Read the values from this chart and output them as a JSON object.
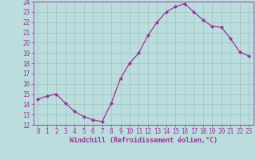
{
  "x": [
    0,
    1,
    2,
    3,
    4,
    5,
    6,
    7,
    8,
    9,
    10,
    11,
    12,
    13,
    14,
    15,
    16,
    17,
    18,
    19,
    20,
    21,
    22,
    23
  ],
  "y": [
    14.5,
    14.8,
    15.0,
    14.1,
    13.3,
    12.8,
    12.5,
    12.3,
    14.1,
    16.5,
    18.0,
    19.0,
    20.7,
    22.0,
    23.0,
    23.5,
    23.8,
    23.0,
    22.2,
    21.6,
    21.5,
    20.4,
    19.1,
    18.7
  ],
  "line_color": "#993399",
  "marker": "D",
  "marker_size": 2.0,
  "bg_color": "#bbdddd",
  "grid_color": "#99bbbb",
  "xlabel": "Windchill (Refroidissement éolien,°C)",
  "xlabel_color": "#993399",
  "tick_color": "#993399",
  "ylim": [
    12,
    24
  ],
  "xlim": [
    -0.5,
    23.5
  ],
  "yticks": [
    12,
    13,
    14,
    15,
    16,
    17,
    18,
    19,
    20,
    21,
    22,
    23,
    24
  ],
  "xticks": [
    0,
    1,
    2,
    3,
    4,
    5,
    6,
    7,
    8,
    9,
    10,
    11,
    12,
    13,
    14,
    15,
    16,
    17,
    18,
    19,
    20,
    21,
    22,
    23
  ],
  "spine_color": "#993399",
  "tick_fontsize": 5.5,
  "xlabel_fontsize": 6.0,
  "line_width": 0.9
}
